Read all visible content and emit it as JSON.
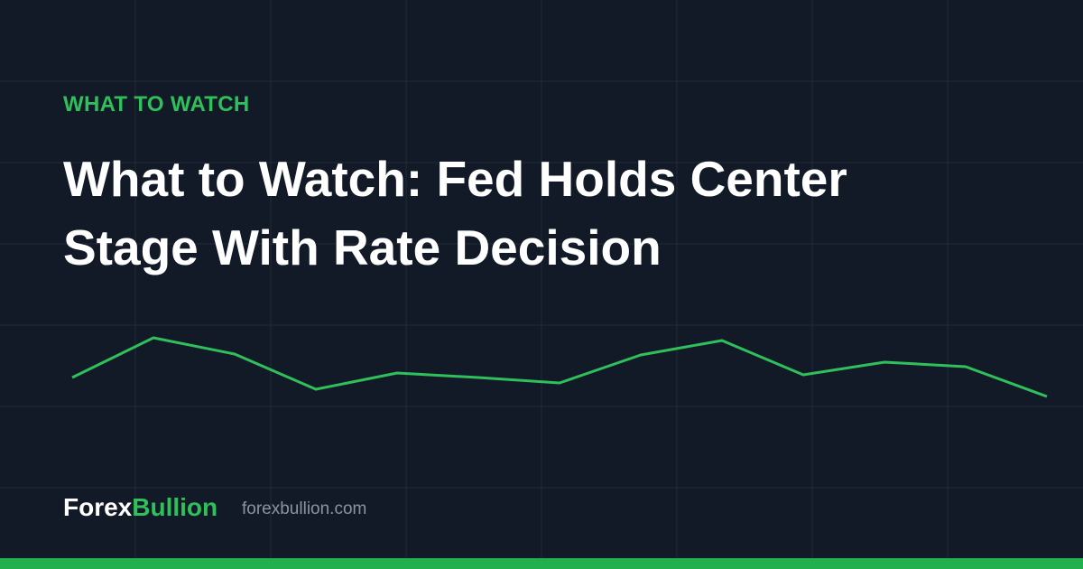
{
  "header": {
    "kicker": "WHAT TO WATCH",
    "title": "What to Watch: Fed Holds Center Stage With Rate Decision"
  },
  "footer": {
    "brand_first": "Forex",
    "brand_second": "Bullion",
    "site": "forexbullion.com"
  }
}
